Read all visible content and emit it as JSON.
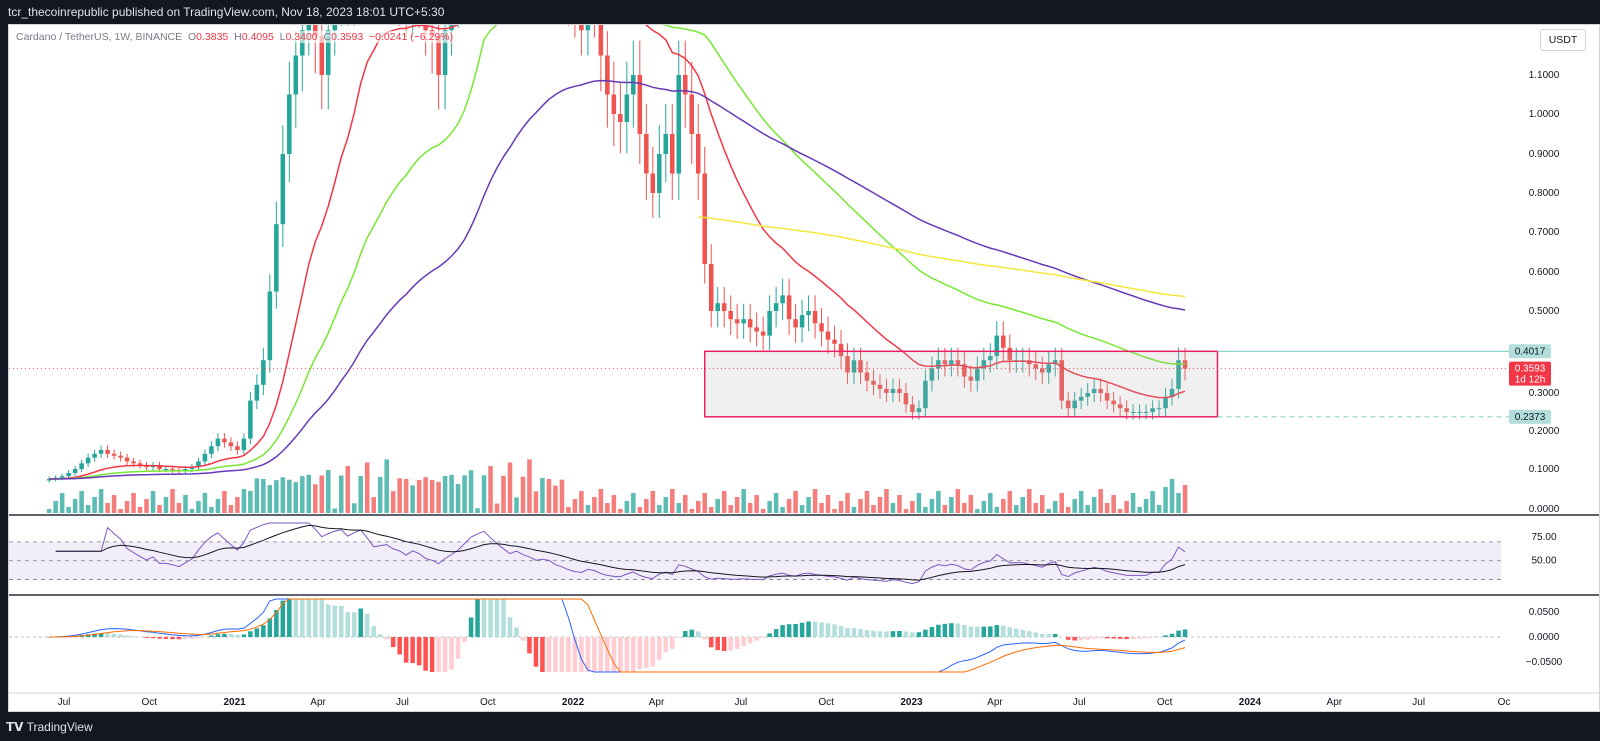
{
  "header": {
    "publisher_line": "tcr_thecoinrepublic published on TradingView.com, Nov 18, 2023 18:01 UTC+5:30"
  },
  "legend": {
    "symbol": "Cardano / TetherUS, 1W, BINANCE",
    "o_label": "O",
    "o_value": "0.3835",
    "h_label": "H",
    "h_value": "0.4095",
    "l_label": "L",
    "l_value": "0.3400",
    "c_label": "C",
    "c_value": "0.3593",
    "change": "−0.0241 (−6.29%)"
  },
  "currency_button": "USDT",
  "footer": {
    "brand": "TradingView"
  },
  "colors": {
    "up": "#26a69a",
    "down": "#ef5350",
    "ema20": "#f23645",
    "ema50": "#76e832",
    "ema100": "#673ab7",
    "ema200": "#f5e63d",
    "box_border": "#e91e63",
    "rsi": "#7e57c2"
  },
  "chart_data": [
    {
      "type": "candlestick",
      "title": "Cardano / TetherUS, 1W, BINANCE",
      "ylim": [
        0,
        1.2
      ],
      "y_ticks": [
        "1.1000",
        "1.0000",
        "0.9000",
        "0.8000",
        "0.7000",
        "0.6000",
        "0.5000",
        "0.3000",
        "0.2000",
        "0.1000",
        "0.0000"
      ],
      "x_ticks": [
        "Jul",
        "Oct",
        "2021",
        "Apr",
        "Jul",
        "Oct",
        "2022",
        "Apr",
        "Jul",
        "Oct",
        "2023",
        "Apr",
        "Jul",
        "Oct",
        "2024",
        "Apr",
        "Jul",
        "Oc"
      ],
      "x_tick_dates": [
        "2020-07-01",
        "2020-10-01",
        "2021-01-01",
        "2021-04-01",
        "2021-07-01",
        "2021-10-01",
        "2022-01-01",
        "2022-04-01",
        "2022-07-01",
        "2022-10-01",
        "2023-01-01",
        "2023-04-01",
        "2023-07-01",
        "2023-10-01",
        "2024-01-01",
        "2024-04-01",
        "2024-07-01",
        "2024-10-01"
      ],
      "price_labels": [
        {
          "text": "0.4017",
          "value": 0.4017,
          "kind": "resistance"
        },
        {
          "text": "0.3593",
          "value": 0.3593,
          "kind": "last",
          "sub": "1d 12h"
        },
        {
          "text": "0.2373",
          "value": 0.2373,
          "kind": "support"
        }
      ],
      "range_box": {
        "top": 0.4017,
        "bottom": 0.2373,
        "from": "2022-05-23",
        "to": "2023-11-27"
      },
      "weekly_close": [
        0.075,
        0.078,
        0.082,
        0.09,
        0.1,
        0.115,
        0.13,
        0.14,
        0.15,
        0.14,
        0.135,
        0.13,
        0.12,
        0.115,
        0.11,
        0.105,
        0.11,
        0.1,
        0.1,
        0.098,
        0.095,
        0.1,
        0.105,
        0.12,
        0.14,
        0.16,
        0.18,
        0.17,
        0.16,
        0.15,
        0.18,
        0.28,
        0.32,
        0.38,
        0.55,
        0.72,
        0.9,
        1.05,
        1.15,
        1.25,
        1.35,
        1.2,
        1.1,
        1.25,
        1.4,
        1.5,
        1.4,
        1.6,
        1.8,
        1.65,
        1.45,
        1.5,
        1.55,
        1.45,
        1.4,
        1.3,
        1.45,
        1.38,
        1.25,
        1.2,
        1.1,
        1.25,
        1.38,
        1.55,
        1.85,
        2.3,
        2.6,
        2.9,
        2.7,
        2.5,
        2.3,
        2.1,
        2.25,
        2.1,
        2.0,
        1.85,
        1.9,
        1.85,
        1.65,
        1.55,
        1.4,
        1.3,
        1.25,
        1.35,
        1.3,
        1.15,
        1.05,
        1.0,
        0.98,
        1.05,
        1.1,
        0.95,
        0.85,
        0.8,
        0.9,
        0.95,
        0.85,
        1.1,
        1.05,
        0.95,
        0.85,
        0.62,
        0.5,
        0.52,
        0.5,
        0.48,
        0.47,
        0.48,
        0.46,
        0.45,
        0.44,
        0.5,
        0.52,
        0.54,
        0.48,
        0.46,
        0.49,
        0.5,
        0.47,
        0.45,
        0.43,
        0.42,
        0.39,
        0.35,
        0.38,
        0.35,
        0.33,
        0.32,
        0.31,
        0.3,
        0.31,
        0.3,
        0.27,
        0.25,
        0.26,
        0.33,
        0.36,
        0.38,
        0.37,
        0.38,
        0.37,
        0.34,
        0.33,
        0.36,
        0.38,
        0.39,
        0.44,
        0.41,
        0.38,
        0.38,
        0.38,
        0.37,
        0.36,
        0.35,
        0.37,
        0.38,
        0.28,
        0.26,
        0.28,
        0.29,
        0.3,
        0.31,
        0.3,
        0.28,
        0.27,
        0.26,
        0.25,
        0.25,
        0.25,
        0.25,
        0.26,
        0.26,
        0.29,
        0.31,
        0.38,
        0.3593
      ],
      "volume_panel": {
        "ticks": [
          "0.1000",
          "0.0000"
        ]
      },
      "indicators": {
        "ema": [
          {
            "name": "EMA 20"
          },
          {
            "name": "EMA 50"
          },
          {
            "name": "EMA 100"
          },
          {
            "name": "EMA 200"
          }
        ],
        "rsi": {
          "ticks": [
            "75.00",
            "50.00"
          ],
          "upper": 70,
          "lower": 30,
          "last": 63
        },
        "macd": {
          "ticks": [
            "0.0500",
            "0.0000",
            "−0.0500"
          ]
        }
      }
    }
  ]
}
